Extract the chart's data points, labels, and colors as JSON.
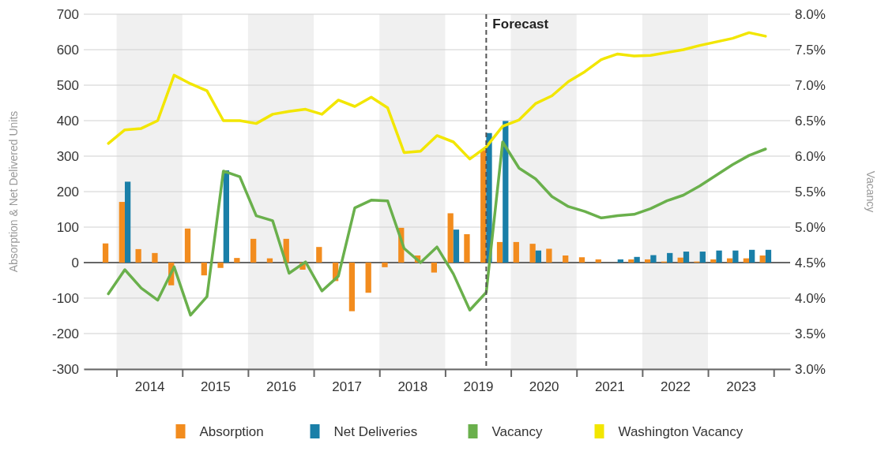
{
  "chart_data": {
    "type": "bar",
    "ylabel": "Absorption & Net Delivered Units",
    "y2label": "Vacancy",
    "x": [
      2013.875,
      2014.125,
      2014.375,
      2014.625,
      2014.875,
      2015.125,
      2015.375,
      2015.625,
      2015.875,
      2016.125,
      2016.375,
      2016.625,
      2016.875,
      2017.125,
      2017.375,
      2017.625,
      2017.875,
      2018.125,
      2018.375,
      2018.625,
      2018.875,
      2019.125,
      2019.375,
      2019.625,
      2019.875,
      2020.125,
      2020.375,
      2020.625,
      2020.875,
      2021.125,
      2021.375,
      2021.625,
      2021.875,
      2022.125,
      2022.375,
      2022.625,
      2022.875,
      2023.125,
      2023.375,
      2023.625,
      2023.875
    ],
    "xlim": [
      2013.5,
      2024.25
    ],
    "xticks": [
      {
        "value": 2014,
        "label": null
      },
      {
        "value": 2014.5,
        "label": "2014"
      },
      {
        "value": 2015,
        "label": null
      },
      {
        "value": 2015.5,
        "label": "2015"
      },
      {
        "value": 2016,
        "label": null
      },
      {
        "value": 2016.5,
        "label": "2016"
      },
      {
        "value": 2017,
        "label": null
      },
      {
        "value": 2017.5,
        "label": "2017"
      },
      {
        "value": 2018,
        "label": null
      },
      {
        "value": 2018.5,
        "label": "2018"
      },
      {
        "value": 2019,
        "label": null
      },
      {
        "value": 2019.5,
        "label": "2019"
      },
      {
        "value": 2020,
        "label": null
      },
      {
        "value": 2020.5,
        "label": "2020"
      },
      {
        "value": 2021,
        "label": null
      },
      {
        "value": 2021.5,
        "label": "2021"
      },
      {
        "value": 2022,
        "label": null
      },
      {
        "value": 2022.5,
        "label": "2022"
      },
      {
        "value": 2023,
        "label": null
      },
      {
        "value": 2023.5,
        "label": "2023"
      },
      {
        "value": 2024,
        "label": null
      }
    ],
    "ylim": [
      -300,
      700
    ],
    "yticks": [
      -300,
      -200,
      -100,
      0,
      100,
      200,
      300,
      400,
      500,
      600,
      700
    ],
    "y2lim": [
      3.0,
      8.0
    ],
    "y2ticks": [
      {
        "value": 3,
        "label": "3.0%"
      },
      {
        "value": 3.5,
        "label": "3.5%"
      },
      {
        "value": 4,
        "label": "4.0%"
      },
      {
        "value": 4.5,
        "label": "4.5%"
      },
      {
        "value": 5,
        "label": "5.0%"
      },
      {
        "value": 5.5,
        "label": "5.5%"
      },
      {
        "value": 6,
        "label": "6.0%"
      },
      {
        "value": 6.5,
        "label": "6.5%"
      },
      {
        "value": 7,
        "label": "7.0%"
      },
      {
        "value": 7.5,
        "label": "7.5%"
      },
      {
        "value": 8,
        "label": "8.0%"
      }
    ],
    "series": [
      {
        "name": "Absorption",
        "color": "#f28c1e",
        "values": [
          54,
          171,
          38,
          27,
          -64,
          96,
          -36,
          -15,
          13,
          67,
          12,
          67,
          -20,
          44,
          -52,
          -137,
          -85,
          -13,
          98,
          20,
          -28,
          139,
          80,
          317,
          58,
          58,
          53,
          39,
          20,
          15,
          9,
          null,
          9,
          9,
          3,
          14,
          3,
          9,
          12,
          12,
          20
        ]
      },
      {
        "name": "Net Deliveries",
        "color": "#1a7fa8",
        "values": [
          null,
          228,
          null,
          null,
          null,
          null,
          null,
          260,
          null,
          null,
          null,
          null,
          null,
          null,
          null,
          null,
          null,
          null,
          null,
          null,
          null,
          93,
          null,
          365,
          399,
          null,
          34,
          null,
          null,
          null,
          null,
          9,
          16,
          21,
          27,
          31,
          31,
          34,
          34,
          36,
          36
        ]
      },
      {
        "name": "Vacancy",
        "type": "line",
        "axis": "y2",
        "color": "#6ab04c",
        "values": [
          4.06,
          4.4,
          4.14,
          3.97,
          4.44,
          3.76,
          4.02,
          5.79,
          5.71,
          5.16,
          5.09,
          4.35,
          4.51,
          4.1,
          4.31,
          5.27,
          5.38,
          5.37,
          4.7,
          4.5,
          4.72,
          4.34,
          3.83,
          4.08,
          6.2,
          5.83,
          5.68,
          5.43,
          5.29,
          5.22,
          5.13,
          5.16,
          5.18,
          5.26,
          5.37,
          5.45,
          5.58,
          5.73,
          5.88,
          6.01,
          6.1
        ]
      },
      {
        "name": "Washington Vacancy",
        "type": "line",
        "axis": "y2",
        "color": "#f2e600",
        "values": [
          6.18,
          6.37,
          6.39,
          6.5,
          7.14,
          7.02,
          6.92,
          6.5,
          6.5,
          6.46,
          6.59,
          6.63,
          6.66,
          6.59,
          6.79,
          6.7,
          6.83,
          6.68,
          6.05,
          6.07,
          6.29,
          6.2,
          5.96,
          6.13,
          6.42,
          6.51,
          6.74,
          6.85,
          7.05,
          7.19,
          7.36,
          7.44,
          7.41,
          7.42,
          7.46,
          7.5,
          7.56,
          7.61,
          7.66,
          7.74,
          7.69
        ]
      }
    ],
    "ref_lines": [
      {
        "axis": "x",
        "value": 2019.625,
        "label": "Forecast",
        "color": "#555555",
        "line_style": "dashed"
      }
    ],
    "bands": [
      {
        "axis": "x",
        "from": 2014,
        "to": 2015,
        "color": "#f0f0f0"
      },
      {
        "axis": "x",
        "from": 2016,
        "to": 2017,
        "color": "#f0f0f0"
      },
      {
        "axis": "x",
        "from": 2018,
        "to": 2019,
        "color": "#f0f0f0"
      },
      {
        "axis": "x",
        "from": 2020,
        "to": 2021,
        "color": "#f0f0f0"
      },
      {
        "axis": "x",
        "from": 2022,
        "to": 2023,
        "color": "#f0f0f0"
      }
    ],
    "grid": "y",
    "legend": "bottom",
    "line_style": "solid",
    "marker": "none"
  }
}
